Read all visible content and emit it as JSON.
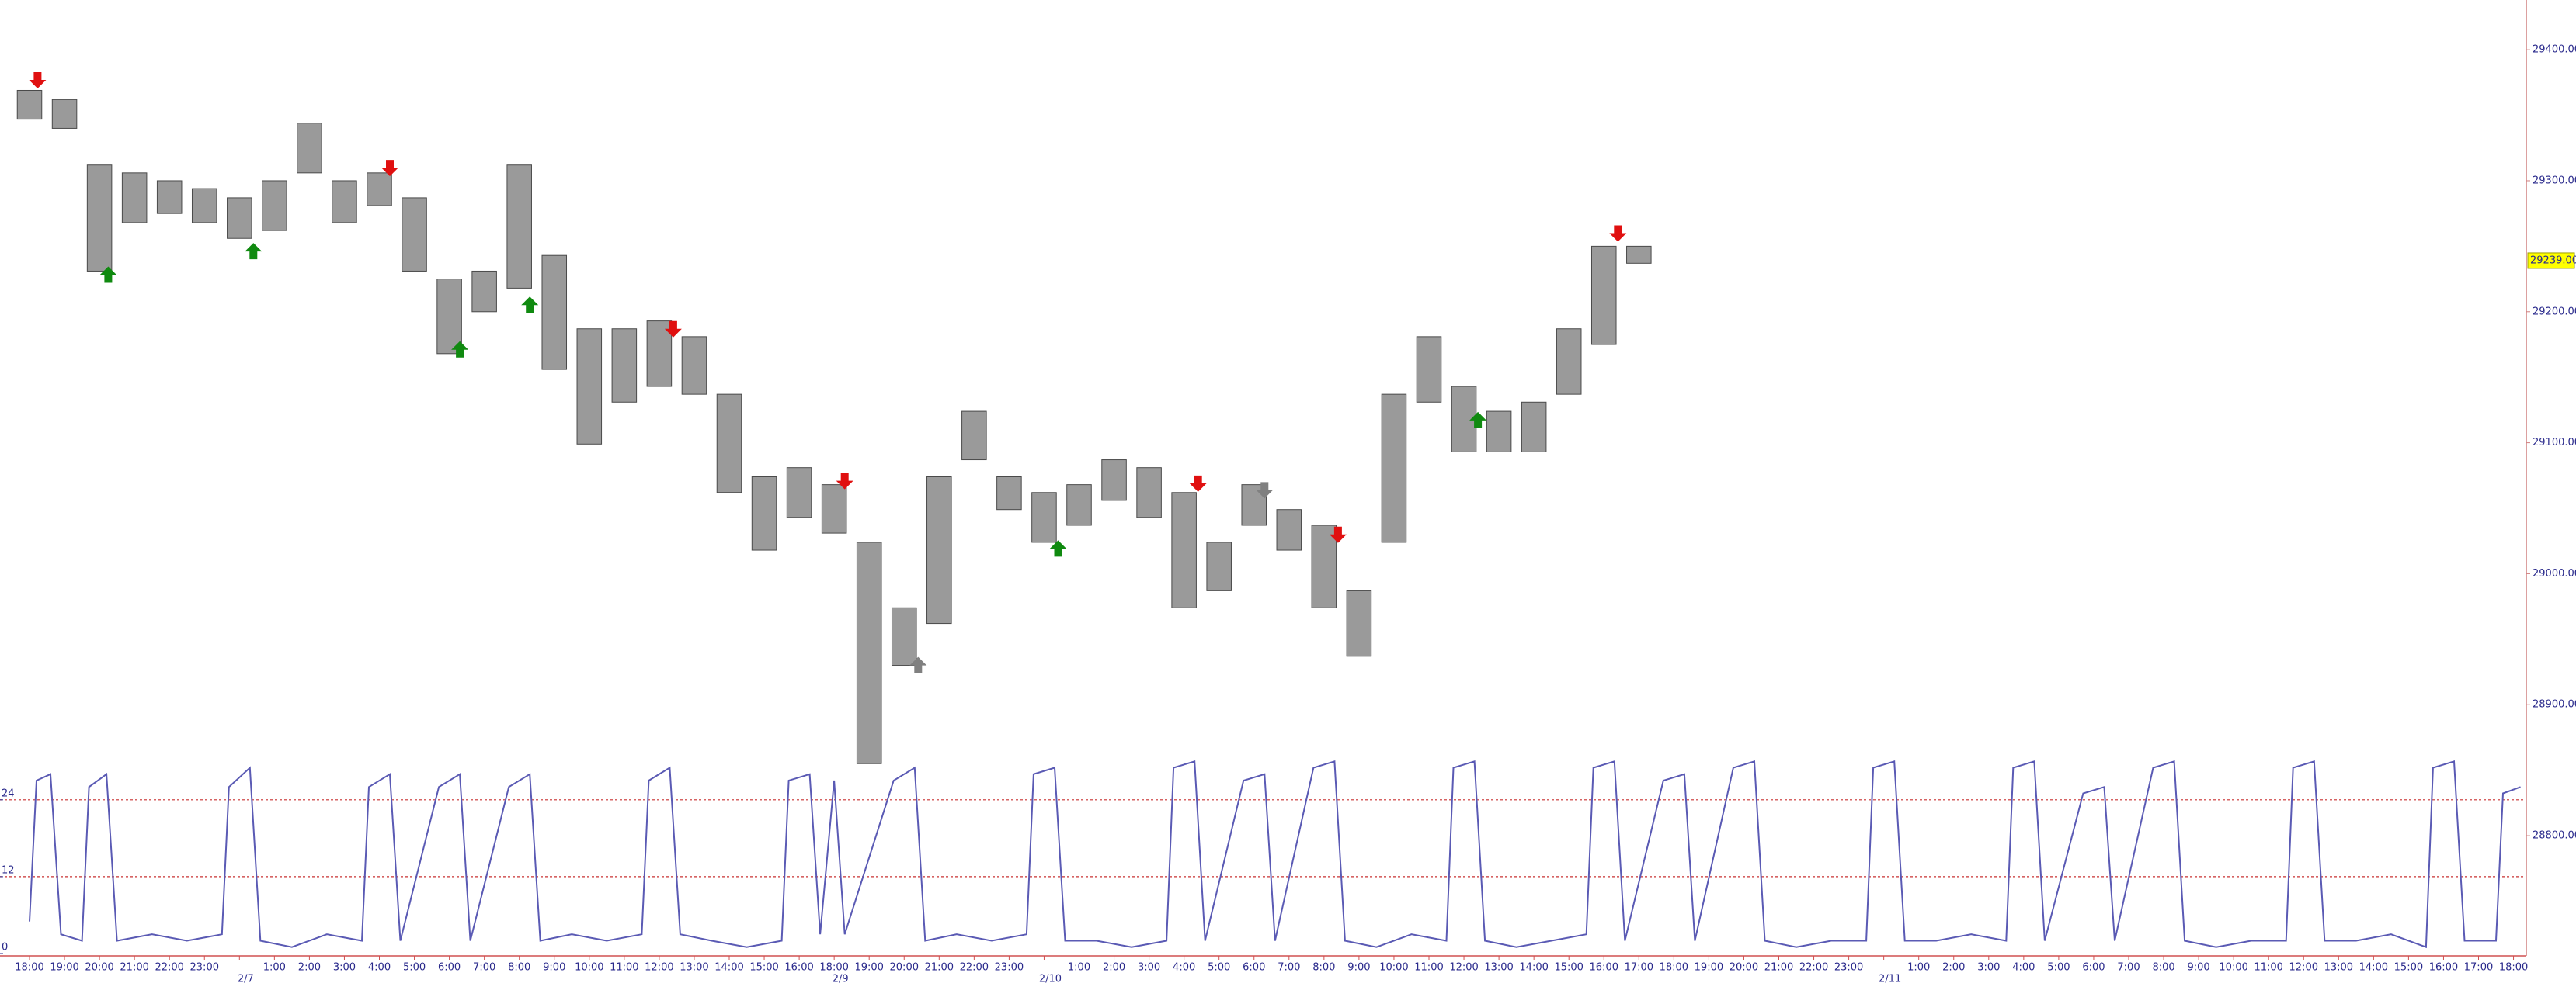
{
  "chart_data": {
    "type": "range",
    "color": "#9a9a9a",
    "edge_color": "#4a4a4a",
    "categories": [
      "18:00",
      "19:00",
      "20:00",
      "21:00",
      "22:00",
      "23:00",
      null,
      "1:00",
      "2:00",
      "3:00",
      "4:00",
      "5:00",
      "6:00",
      "7:00",
      "8:00",
      "9:00",
      "10:00",
      "11:00",
      "12:00",
      "13:00",
      "14:00",
      "15:00",
      "16:00",
      "18:00",
      "19:00",
      "20:00",
      "21:00",
      "22:00",
      "23:00",
      null,
      "1:00",
      "2:00",
      "3:00",
      "4:00",
      "5:00",
      "6:00",
      "7:00",
      "8:00",
      "9:00",
      "10:00",
      "11:00",
      "12:00",
      "13:00",
      "14:00",
      "15:00",
      "16:00",
      "17:00",
      "18:00",
      "19:00",
      "20:00",
      "21:00",
      "22:00",
      "23:00",
      null,
      "1:00",
      "2:00",
      "3:00",
      "4:00",
      "5:00",
      "6:00",
      "7:00",
      "8:00",
      "9:00",
      "10:00",
      "11:00",
      "12:00",
      "13:00",
      "14:00",
      "15:00",
      "16:00",
      "17:00",
      "18:00"
    ],
    "date_labels": [
      null,
      null,
      null,
      null,
      null,
      null,
      "2/7",
      null,
      null,
      null,
      null,
      null,
      null,
      null,
      null,
      null,
      null,
      null,
      null,
      null,
      null,
      null,
      null,
      "2/9",
      null,
      null,
      null,
      null,
      null,
      "2/10",
      null,
      null,
      null,
      null,
      null,
      null,
      null,
      null,
      null,
      null,
      null,
      null,
      null,
      null,
      null,
      null,
      null,
      null,
      null,
      null,
      null,
      null,
      null,
      "2/11",
      null,
      null,
      null,
      null,
      null,
      null,
      null,
      null,
      null,
      null,
      null,
      null,
      null,
      null,
      null,
      null,
      null,
      null
    ],
    "high": [
      29369,
      29362,
      29312,
      29306,
      29300,
      29294,
      29287,
      29300,
      29344,
      29300,
      29306,
      29287,
      29225,
      29231,
      29312,
      29243,
      29187,
      29187,
      29193,
      29181,
      29137,
      29074,
      29081,
      29068,
      29024,
      28974,
      29074,
      29124,
      29074,
      29062,
      29068,
      29087,
      29081,
      29062,
      29024,
      29068,
      29049,
      29037,
      28987,
      29137,
      29181,
      29143,
      29124,
      29131,
      29187,
      29250,
      29250,
      null,
      null,
      null,
      null,
      null,
      null,
      null,
      null,
      null,
      null,
      null,
      null,
      null,
      null,
      null,
      null,
      null,
      null,
      null,
      null,
      null,
      null,
      null,
      null,
      null
    ],
    "low": [
      29347,
      29340,
      29231,
      29268,
      29275,
      29268,
      29256,
      29262,
      29306,
      29268,
      29281,
      29231,
      29168,
      29200,
      29218,
      29156,
      29099,
      29131,
      29143,
      29137,
      29062,
      29018,
      29043,
      29031,
      28855,
      28930,
      28962,
      29087,
      29049,
      29024,
      29037,
      29056,
      29043,
      28974,
      28987,
      29037,
      29018,
      28974,
      28937,
      29024,
      29131,
      29093,
      29093,
      29093,
      29137,
      29175,
      29237,
      null,
      null,
      null,
      null,
      null,
      null,
      null,
      null,
      null,
      null,
      null,
      null,
      null,
      null,
      null,
      null,
      null,
      null,
      null,
      null,
      null,
      null,
      null,
      null,
      null
    ],
    "ylim": [
      28710,
      29438
    ],
    "yticks": [
      {
        "value": 28800,
        "label": "28800.00"
      },
      {
        "value": 28900,
        "label": "28900.00"
      },
      {
        "value": 29000,
        "label": "29000.00"
      },
      {
        "value": 29100,
        "label": "29100.00"
      },
      {
        "value": 29200,
        "label": "29200.00"
      },
      {
        "value": 29300,
        "label": "29300.00"
      },
      {
        "value": 29400,
        "label": "29400.00"
      }
    ],
    "last_price": {
      "value": 29239,
      "label": "29239.00"
    },
    "signals": [
      {
        "x": 0.23,
        "y": 29377,
        "dir": "down",
        "color": "#e01010"
      },
      {
        "x": 2.25,
        "y": 29228,
        "dir": "up",
        "color": "#108a10"
      },
      {
        "x": 6.4,
        "y": 29246,
        "dir": "up",
        "color": "#108a10"
      },
      {
        "x": 10.3,
        "y": 29310,
        "dir": "down",
        "color": "#e01010"
      },
      {
        "x": 12.3,
        "y": 29171,
        "dir": "up",
        "color": "#108a10"
      },
      {
        "x": 14.3,
        "y": 29205,
        "dir": "up",
        "color": "#108a10"
      },
      {
        "x": 18.4,
        "y": 29187,
        "dir": "down",
        "color": "#e01010"
      },
      {
        "x": 23.3,
        "y": 29071,
        "dir": "down",
        "color": "#e01010"
      },
      {
        "x": 25.4,
        "y": 28930,
        "dir": "up",
        "color": "#808080"
      },
      {
        "x": 29.4,
        "y": 29019,
        "dir": "up",
        "color": "#108a10"
      },
      {
        "x": 33.4,
        "y": 29069,
        "dir": "down",
        "color": "#e01010"
      },
      {
        "x": 35.3,
        "y": 29064,
        "dir": "down",
        "color": "#808080"
      },
      {
        "x": 37.4,
        "y": 29030,
        "dir": "down",
        "color": "#e01010"
      },
      {
        "x": 41.4,
        "y": 29117,
        "dir": "up",
        "color": "#108a10"
      },
      {
        "x": 45.4,
        "y": 29260,
        "dir": "down",
        "color": "#e01010"
      }
    ],
    "oscillator": {
      "type": "line",
      "color": "#5a5ab4",
      "level_color": "#c83030",
      "ylim": [
        0,
        31
      ],
      "yticks": [
        0,
        12,
        24
      ],
      "levels": [
        12,
        24
      ],
      "x": [
        0,
        0.2,
        0.6,
        0.9,
        1.5,
        1.7,
        2.2,
        2.5,
        3.5,
        4.5,
        5.5,
        5.7,
        6.3,
        6.6,
        7.5,
        8.5,
        9.5,
        9.7,
        10.3,
        10.6,
        11.7,
        12.3,
        12.6,
        13.7,
        14.3,
        14.6,
        15.5,
        16.5,
        17.5,
        17.7,
        18.3,
        18.6,
        19.5,
        20.5,
        21.5,
        21.7,
        22.3,
        22.6,
        23.0,
        23.3,
        24.7,
        25.3,
        25.6,
        26.5,
        27.5,
        28.5,
        28.7,
        29.3,
        29.6,
        30.5,
        31.5,
        32.5,
        32.7,
        33.3,
        33.6,
        34.7,
        35.3,
        35.6,
        36.7,
        37.3,
        37.6,
        38.5,
        39.5,
        40.5,
        40.7,
        41.3,
        41.6,
        42.5,
        43.5,
        44.5,
        44.7,
        45.3,
        45.6,
        46.7,
        47.3,
        47.6,
        48.7,
        49.3,
        49.6,
        50.5,
        51.5,
        52.5,
        52.7,
        53.3,
        53.6,
        54.5,
        55.5,
        56.5,
        56.7,
        57.3,
        57.6,
        58.7,
        59.3,
        59.6,
        60.7,
        61.3,
        61.6,
        62.5,
        63.5,
        64.5,
        64.7,
        65.3,
        65.6,
        66.5,
        67.5,
        68.5,
        68.7,
        69.3,
        69.6,
        70.5,
        70.7,
        71.2
      ],
      "values": [
        5,
        27,
        28,
        3,
        2,
        26,
        28,
        2,
        3,
        2,
        3,
        26,
        29,
        2,
        1,
        3,
        2,
        26,
        28,
        2,
        26,
        28,
        2,
        26,
        28,
        2,
        3,
        2,
        3,
        27,
        29,
        3,
        2,
        1,
        2,
        27,
        28,
        3,
        27,
        3,
        27,
        29,
        2,
        3,
        2,
        3,
        28,
        29,
        2,
        2,
        1,
        2,
        29,
        30,
        2,
        27,
        28,
        2,
        29,
        30,
        2,
        1,
        3,
        2,
        29,
        30,
        2,
        1,
        2,
        3,
        29,
        30,
        2,
        27,
        28,
        2,
        29,
        30,
        2,
        1,
        2,
        2,
        29,
        30,
        2,
        2,
        3,
        2,
        29,
        30,
        2,
        25,
        26,
        2,
        29,
        30,
        2,
        1,
        2,
        2,
        29,
        30,
        2,
        2,
        3,
        1,
        29,
        30,
        2,
        2,
        25,
        26
      ]
    }
  }
}
